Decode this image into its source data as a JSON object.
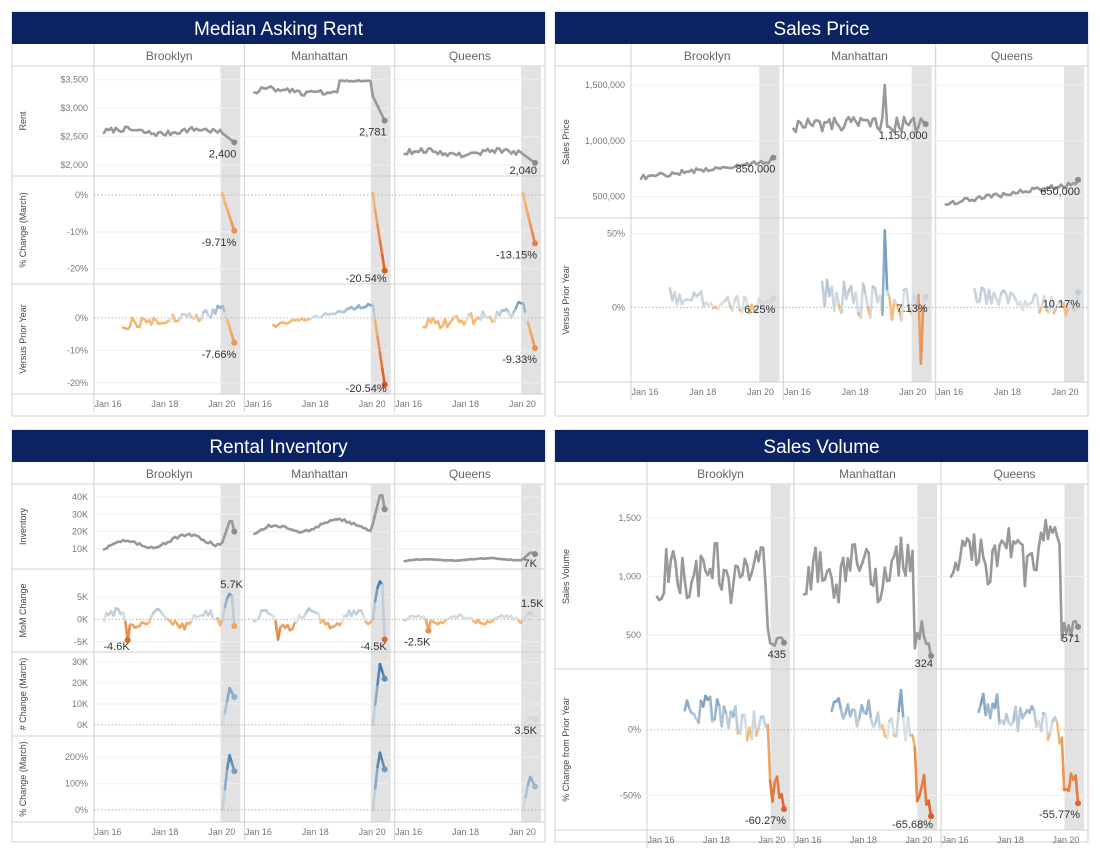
{
  "colors": {
    "banner": "#0b2362",
    "banner_text": "#ffffff",
    "level_line": "#999999",
    "shade": "#e2e2e2",
    "diverge_pos": "#2b6aa4",
    "diverge_mid": "#dfe3e6",
    "diverge_neg": "#d9541e",
    "axis_text": "#777777",
    "label_text": "#333333"
  },
  "axis": {
    "x_ticks": [
      "Jan 16",
      "Jan 18",
      "Jan 20"
    ]
  },
  "panels": [
    {
      "id": "median-asking-rent",
      "title": "Median Asking Rent",
      "boroughs": [
        "Brooklyn",
        "Manhattan",
        "Queens"
      ],
      "rows": [
        {
          "name": "rent",
          "ylabel": "Rent",
          "yticks": [
            "$2,000",
            "$2,500",
            "$3,000",
            "$3,500"
          ],
          "values": [
            2000,
            2500,
            3000,
            3500
          ],
          "ylim": [
            1950,
            3600
          ],
          "color_mode": "level",
          "zero_line": false
        },
        {
          "name": "pct-change-march",
          "ylabel": "% Change (March)",
          "yticks": [
            "-20%",
            "-10%",
            "0%"
          ],
          "values": [
            -20,
            -10,
            0
          ],
          "ylim": [
            -22,
            3
          ],
          "color_mode": "diverge",
          "zero_line": true
        },
        {
          "name": "versus-prior-year",
          "ylabel": "Versus Prior Year",
          "yticks": [
            "-20%",
            "-10%",
            "0%"
          ],
          "values": [
            -20,
            -10,
            0
          ],
          "ylim": [
            -21,
            8
          ],
          "color_mode": "diverge",
          "zero_line": true
        }
      ]
    },
    {
      "id": "sales-price",
      "title": "Sales Price",
      "boroughs": [
        "Brooklyn",
        "Manhattan",
        "Queens"
      ],
      "rows": [
        {
          "name": "sales-price",
          "ylabel": "Sales Price",
          "yticks": [
            "500,000",
            "1,000,000",
            "1,500,000"
          ],
          "values": [
            500000,
            1000000,
            1500000
          ],
          "ylim": [
            380000,
            1600000
          ],
          "color_mode": "level",
          "zero_line": false
        },
        {
          "name": "versus-prior-year",
          "ylabel": "Versus Prior Year",
          "yticks": [
            "0%",
            "50%"
          ],
          "values": [
            0,
            50
          ],
          "ylim": [
            -45,
            55
          ],
          "color_mode": "diverge",
          "zero_line": true
        }
      ]
    },
    {
      "id": "rental-inventory",
      "title": "Rental Inventory",
      "boroughs": [
        "Brooklyn",
        "Manhattan",
        "Queens"
      ],
      "rows": [
        {
          "name": "inventory",
          "ylabel": "Inventory",
          "yticks": [
            "10K",
            "20K",
            "30K",
            "40K"
          ],
          "values": [
            10000,
            20000,
            30000,
            40000
          ],
          "ylim": [
            3000,
            43000
          ],
          "color_mode": "level",
          "zero_line": false
        },
        {
          "name": "mom-change",
          "ylabel": "MoM Change",
          "yticks": [
            "-5K",
            "0K",
            "5K"
          ],
          "values": [
            -5000,
            0,
            5000
          ],
          "ylim": [
            -5500,
            9500
          ],
          "color_mode": "diverge",
          "zero_line": true
        },
        {
          "name": "num-change-march",
          "ylabel": "# Change (March)",
          "yticks": [
            "0K",
            "10K",
            "20K",
            "30K"
          ],
          "values": [
            0,
            10000,
            20000,
            30000
          ],
          "ylim": [
            -1500,
            31000
          ],
          "color_mode": "diverge",
          "zero_line": true
        },
        {
          "name": "pct-change-march",
          "ylabel": "% Change (March)",
          "yticks": [
            "0%",
            "100%",
            "200%"
          ],
          "values": [
            0,
            100,
            200
          ],
          "ylim": [
            -15,
            250
          ],
          "color_mode": "diverge",
          "zero_line": true
        }
      ]
    },
    {
      "id": "sales-volume",
      "title": "Sales Volume",
      "boroughs": [
        "Brooklyn",
        "Manhattan",
        "Queens"
      ],
      "rows": [
        {
          "name": "sales-volume",
          "ylabel": "Sales Volume",
          "yticks": [
            "500",
            "1,000",
            "1,500"
          ],
          "values": [
            500,
            1000,
            1500
          ],
          "ylim": [
            280,
            1720
          ],
          "color_mode": "level",
          "zero_line": false
        },
        {
          "name": "pct-change-prior-year",
          "ylabel": "% Change from Prior Year",
          "yticks": [
            "-50%",
            "0%"
          ],
          "values": [
            -50,
            0
          ],
          "ylim": [
            -70,
            40
          ],
          "color_mode": "diverge",
          "zero_line": true
        }
      ]
    }
  ],
  "chart_data": [
    {
      "type": "line",
      "title": "Median Asking Rent",
      "x_axis": [
        "Jan 16",
        "Jan 18",
        "Jan 20"
      ],
      "shaded_region": "Mar 2020 – latest",
      "series": [
        {
          "borough": "Brooklyn",
          "metric": "Rent",
          "latest": 2400,
          "label": "2,400",
          "start": 2590
        },
        {
          "borough": "Manhattan",
          "metric": "Rent",
          "latest": 2781,
          "label": "2,781",
          "start": 3300
        },
        {
          "borough": "Queens",
          "metric": "Rent",
          "latest": 2040,
          "label": "2,040",
          "start": 2220
        },
        {
          "borough": "Brooklyn",
          "metric": "% Change (March)",
          "latest": -9.71,
          "label": "-9.71%"
        },
        {
          "borough": "Manhattan",
          "metric": "% Change (March)",
          "latest": -20.54,
          "label": "-20.54%"
        },
        {
          "borough": "Queens",
          "metric": "% Change (March)",
          "latest": -13.15,
          "label": "-13.15%"
        },
        {
          "borough": "Brooklyn",
          "metric": "Versus Prior Year",
          "latest": -7.66,
          "label": "-7.66%"
        },
        {
          "borough": "Manhattan",
          "metric": "Versus Prior Year",
          "latest": -20.54,
          "label": "-20.54%"
        },
        {
          "borough": "Queens",
          "metric": "Versus Prior Year",
          "latest": -9.33,
          "label": "-9.33%"
        }
      ]
    },
    {
      "type": "line",
      "title": "Sales Price",
      "x_axis": [
        "Jan 16",
        "Jan 18",
        "Jan 20"
      ],
      "series": [
        {
          "borough": "Brooklyn",
          "metric": "Sales Price",
          "latest": 850000,
          "label": "850,000",
          "start": 670000
        },
        {
          "borough": "Manhattan",
          "metric": "Sales Price",
          "latest": 1150000,
          "label": "1,150,000",
          "start": 1140000
        },
        {
          "borough": "Queens",
          "metric": "Sales Price",
          "latest": 650000,
          "label": "650,000",
          "start": 440000
        },
        {
          "borough": "Brooklyn",
          "metric": "Versus Prior Year",
          "latest": 6.25,
          "label": "6.25%"
        },
        {
          "borough": "Manhattan",
          "metric": "Versus Prior Year",
          "latest": 7.13,
          "label": "7.13%"
        },
        {
          "borough": "Queens",
          "metric": "Versus Prior Year",
          "latest": 10.17,
          "label": "10.17%"
        }
      ]
    },
    {
      "type": "line",
      "title": "Rental Inventory",
      "x_axis": [
        "Jan 16",
        "Jan 18",
        "Jan 20"
      ],
      "series": [
        {
          "borough": "Brooklyn",
          "metric": "Inventory",
          "latest": 20000,
          "start": 10000
        },
        {
          "borough": "Manhattan",
          "metric": "Inventory",
          "latest": 33000,
          "start": 19000
        },
        {
          "borough": "Queens",
          "metric": "Inventory",
          "latest": 7000,
          "label": "7K",
          "start": 3000
        },
        {
          "borough": "Brooklyn",
          "metric": "MoM Change",
          "min": -4600,
          "min_label": "-4.6K",
          "max": 5700,
          "max_label": "5.7K"
        },
        {
          "borough": "Manhattan",
          "metric": "MoM Change",
          "min": -4500,
          "min_label": "-4.5K",
          "max": 8500
        },
        {
          "borough": "Queens",
          "metric": "MoM Change",
          "min": -2500,
          "min_label": "-2.5K",
          "max": 1500,
          "max_label": "1.5K"
        },
        {
          "borough": "Brooklyn",
          "metric": "# Change (March)",
          "peak": 17500
        },
        {
          "borough": "Manhattan",
          "metric": "# Change (March)",
          "peak": 29000
        },
        {
          "borough": "Queens",
          "metric": "# Change (March)",
          "latest": 3500,
          "label": "3.5K"
        },
        {
          "borough": "Brooklyn",
          "metric": "% Change (March)",
          "peak": 215
        },
        {
          "borough": "Manhattan",
          "metric": "% Change (March)",
          "peak": 225
        },
        {
          "borough": "Queens",
          "metric": "% Change (March)",
          "peak": 130
        }
      ]
    },
    {
      "type": "line",
      "title": "Sales Volume",
      "x_axis": [
        "Jan 16",
        "Jan 18",
        "Jan 20"
      ],
      "series": [
        {
          "borough": "Brooklyn",
          "metric": "Sales Volume",
          "latest": 435,
          "label": "435",
          "start": 880
        },
        {
          "borough": "Manhattan",
          "metric": "Sales Volume",
          "latest": 324,
          "label": "324",
          "start": 900
        },
        {
          "borough": "Queens",
          "metric": "Sales Volume",
          "latest": 571,
          "label": "571",
          "start": 1050
        },
        {
          "borough": "Brooklyn",
          "metric": "% Change from Prior Year",
          "latest": -60.27,
          "label": "-60.27%"
        },
        {
          "borough": "Manhattan",
          "metric": "% Change from Prior Year",
          "latest": -65.68,
          "label": "-65.68%"
        },
        {
          "borough": "Queens",
          "metric": "% Change from Prior Year",
          "latest": -55.77,
          "label": "-55.77%"
        }
      ]
    }
  ]
}
